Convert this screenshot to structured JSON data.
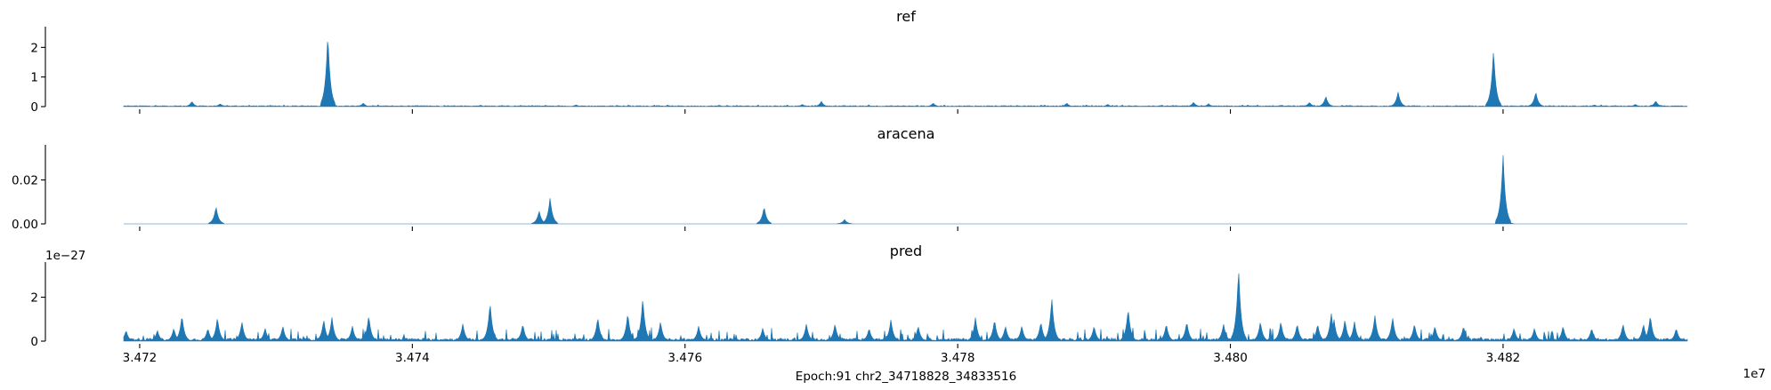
{
  "chart_data": {
    "type": "area",
    "xlabel": "Epoch:91 chr2_34718828_34833516",
    "x_offset_label": "1e7",
    "xlim": [
      34718828,
      34833516
    ],
    "x_ticks": [
      34720000,
      34740000,
      34760000,
      34780000,
      34800000,
      34820000
    ],
    "x_tick_labels": [
      "3.472",
      "3.474",
      "3.476",
      "3.478",
      "3.480",
      "3.482"
    ],
    "color": "#1f77b4",
    "panels": [
      {
        "title": "ref",
        "ylim": [
          0,
          2.7
        ],
        "y_ticks": [
          0,
          1,
          2
        ],
        "y_tick_labels": [
          "0",
          "1",
          "2"
        ],
        "y_offset_label": "",
        "show_x_tick_labels": false,
        "baseline": 0.02,
        "noise": 0.015,
        "peaks": [
          [
            34723830,
            0.18
          ],
          [
            34725900,
            0.1
          ],
          [
            34733800,
            2.5
          ],
          [
            34736400,
            0.12
          ],
          [
            34745000,
            0.05
          ],
          [
            34752000,
            0.06
          ],
          [
            34762500,
            0.05
          ],
          [
            34768600,
            0.08
          ],
          [
            34770000,
            0.18
          ],
          [
            34778200,
            0.12
          ],
          [
            34788000,
            0.12
          ],
          [
            34791000,
            0.08
          ],
          [
            34798400,
            0.1
          ],
          [
            34797300,
            0.15
          ],
          [
            34807000,
            0.35
          ],
          [
            34805800,
            0.15
          ],
          [
            34812300,
            0.5
          ],
          [
            34819300,
            1.95
          ],
          [
            34822400,
            0.5
          ],
          [
            34826700,
            0.06
          ],
          [
            34829700,
            0.08
          ],
          [
            34831200,
            0.2
          ]
        ]
      },
      {
        "title": "aracena",
        "ylim": [
          0,
          0.036
        ],
        "y_ticks": [
          0,
          0.02
        ],
        "y_tick_labels": [
          "0.00",
          "0.02"
        ],
        "y_offset_label": "",
        "show_x_tick_labels": false,
        "baseline": 0,
        "noise": 0,
        "peaks": [
          [
            34725600,
            0.008
          ],
          [
            34749300,
            0.006
          ],
          [
            34750100,
            0.012
          ],
          [
            34765800,
            0.008
          ],
          [
            34771700,
            0.002
          ],
          [
            34820000,
            0.032
          ],
          [
            34820200,
            0.003
          ]
        ]
      },
      {
        "title": "pred",
        "ylim": [
          0,
          3.6
        ],
        "y_ticks": [
          0,
          2
        ],
        "y_tick_labels": [
          "0",
          "2"
        ],
        "y_offset_label": "1e−27",
        "show_x_tick_labels": true,
        "baseline": 0.08,
        "noise": 0.25,
        "peaks": [
          [
            34719000,
            0.5
          ],
          [
            34721300,
            0.5
          ],
          [
            34722500,
            0.6
          ],
          [
            34723100,
            1.2
          ],
          [
            34725000,
            0.6
          ],
          [
            34725700,
            1.1
          ],
          [
            34727500,
            0.9
          ],
          [
            34729200,
            0.6
          ],
          [
            34730500,
            0.7
          ],
          [
            34733500,
            1.0
          ],
          [
            34734100,
            1.1
          ],
          [
            34735600,
            0.7
          ],
          [
            34736800,
            1.2
          ],
          [
            34743700,
            0.8
          ],
          [
            34745700,
            1.8
          ],
          [
            34748100,
            0.8
          ],
          [
            34753600,
            1.1
          ],
          [
            34755800,
            1.3
          ],
          [
            34756900,
            2.0
          ],
          [
            34758200,
            0.9
          ],
          [
            34761000,
            0.7
          ],
          [
            34765700,
            0.6
          ],
          [
            34768900,
            0.8
          ],
          [
            34771000,
            0.8
          ],
          [
            34773500,
            0.6
          ],
          [
            34775100,
            1.0
          ],
          [
            34777100,
            0.7
          ],
          [
            34781300,
            1.1
          ],
          [
            34782700,
            1.0
          ],
          [
            34783500,
            0.7
          ],
          [
            34784700,
            0.7
          ],
          [
            34786100,
            0.9
          ],
          [
            34786900,
            2.0
          ],
          [
            34790000,
            0.7
          ],
          [
            34792500,
            1.5
          ],
          [
            34795300,
            0.8
          ],
          [
            34796800,
            0.9
          ],
          [
            34799500,
            0.8
          ],
          [
            34800600,
            3.4
          ],
          [
            34802200,
            0.9
          ],
          [
            34803700,
            0.9
          ],
          [
            34804900,
            0.8
          ],
          [
            34806400,
            0.8
          ],
          [
            34807400,
            1.3
          ],
          [
            34807600,
            1.0
          ],
          [
            34808400,
            1.0
          ],
          [
            34809100,
            0.9
          ],
          [
            34810600,
            1.2
          ],
          [
            34811900,
            1.1
          ],
          [
            34813500,
            0.8
          ],
          [
            34815000,
            0.7
          ],
          [
            34817100,
            0.7
          ],
          [
            34820800,
            0.6
          ],
          [
            34822300,
            0.6
          ],
          [
            34824400,
            0.7
          ],
          [
            34826500,
            0.6
          ],
          [
            34828800,
            0.8
          ],
          [
            34830300,
            0.8
          ],
          [
            34830800,
            1.2
          ],
          [
            34832700,
            0.6
          ]
        ]
      }
    ]
  }
}
